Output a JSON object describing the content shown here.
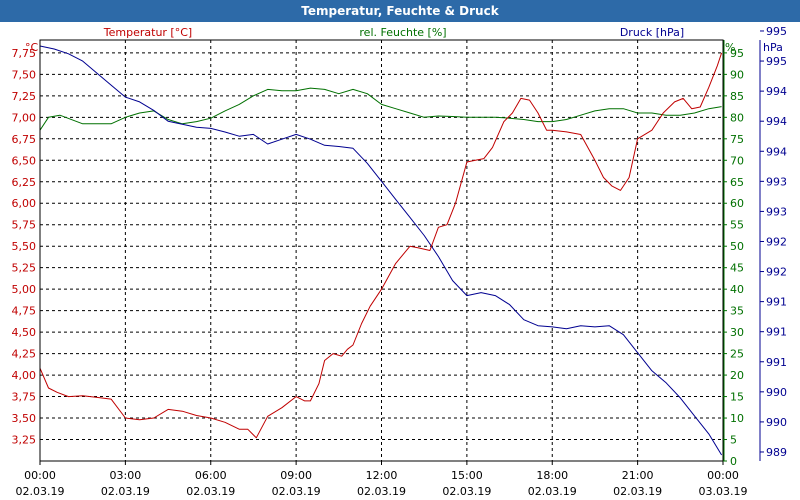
{
  "window": {
    "title": "Temperatur, Feuchte & Druck"
  },
  "chart_data": {
    "type": "line",
    "title": "Temperatur, Feuchte & Druck",
    "colors": {
      "temperature": "#c00000",
      "humidity": "#007000",
      "pressure": "#000090",
      "grid": "#000000",
      "title_bar": "#2d6aa8"
    },
    "x": {
      "unit_label": "time",
      "hours_range": [
        0,
        24
      ],
      "tick_hours": [
        0,
        3,
        6,
        9,
        12,
        15,
        18,
        21,
        24
      ],
      "tick_labels": [
        {
          "time": "00:00",
          "date": "02.03.19"
        },
        {
          "time": "03:00",
          "date": "02.03.19"
        },
        {
          "time": "06:00",
          "date": "02.03.19"
        },
        {
          "time": "09:00",
          "date": "02.03.19"
        },
        {
          "time": "12:00",
          "date": "02.03.19"
        },
        {
          "time": "15:00",
          "date": "02.03.19"
        },
        {
          "time": "18:00",
          "date": "02.03.19"
        },
        {
          "time": "21:00",
          "date": "02.03.19"
        },
        {
          "time": "00:00",
          "date": "03.03.19"
        }
      ]
    },
    "axes": {
      "temperature": {
        "unit": "°C",
        "legend": "Temperatur [°C]",
        "range": [
          3.0,
          7.9
        ],
        "ticks": [
          "3,25",
          "3,50",
          "3,75",
          "4,00",
          "4,25",
          "4,50",
          "4,75",
          "5,00",
          "5,25",
          "5,50",
          "5,75",
          "6,00",
          "6,25",
          "6,50",
          "6,75",
          "7,00",
          "7,25",
          "7,50",
          "7,75"
        ]
      },
      "humidity": {
        "unit": "%",
        "legend": "rel. Feuchte [%]",
        "range": [
          0,
          98
        ],
        "ticks": [
          "0",
          "5",
          "10",
          "15",
          "20",
          "25",
          "30",
          "35",
          "40",
          "45",
          "50",
          "55",
          "60",
          "65",
          "70",
          "75",
          "80",
          "85",
          "90",
          "95"
        ]
      },
      "pressure": {
        "unit": "hPa",
        "legend": "Druck [hPa]",
        "range": [
          988.95,
          995.95
        ],
        "ticks": [
          "989",
          "990",
          "990",
          "991",
          "991",
          "991",
          "992",
          "992",
          "993",
          "993",
          "994",
          "994",
          "994",
          "995",
          "995"
        ]
      }
    },
    "series": [
      {
        "name": "Temperatur [°C]",
        "axis": "temperature",
        "x": [
          0,
          0.3,
          0.6,
          1,
          1.5,
          2,
          2.5,
          3,
          3.5,
          4,
          4.5,
          5,
          5.5,
          6,
          6.5,
          7,
          7.3,
          7.6,
          8,
          8.5,
          9,
          9.3,
          9.5,
          9.8,
          10,
          10.3,
          10.6,
          10.8,
          11,
          11.3,
          11.6,
          12,
          12.5,
          13,
          13.3,
          13.7,
          14,
          14.3,
          14.6,
          15,
          15.3,
          15.6,
          15.9,
          16.3,
          16.6,
          16.9,
          17.2,
          17.5,
          17.8,
          18,
          18.5,
          19,
          19.5,
          19.8,
          20.1,
          20.4,
          20.7,
          21,
          21.5,
          21.9,
          22.3,
          22.6,
          22.9,
          23.2,
          23.5,
          23.8,
          23.95
        ],
        "values": [
          4.08,
          3.85,
          3.8,
          3.75,
          3.76,
          3.74,
          3.72,
          3.5,
          3.48,
          3.5,
          3.6,
          3.58,
          3.53,
          3.5,
          3.45,
          3.37,
          3.37,
          3.27,
          3.52,
          3.62,
          3.75,
          3.7,
          3.7,
          3.9,
          4.17,
          4.25,
          4.22,
          4.3,
          4.35,
          4.6,
          4.8,
          5.0,
          5.3,
          5.5,
          5.48,
          5.45,
          5.72,
          5.75,
          6.0,
          6.48,
          6.5,
          6.52,
          6.65,
          6.95,
          7.05,
          7.22,
          7.2,
          7.05,
          6.85,
          6.85,
          6.83,
          6.8,
          6.5,
          6.3,
          6.2,
          6.15,
          6.3,
          6.75,
          6.85,
          7.05,
          7.18,
          7.22,
          7.1,
          7.12,
          7.35,
          7.6,
          7.75
        ]
      },
      {
        "name": "rel. Feuchte [%]",
        "axis": "humidity",
        "x": [
          0,
          0.3,
          0.7,
          1.5,
          2,
          2.5,
          3,
          3.5,
          4,
          4.5,
          5,
          5.5,
          6,
          6.5,
          7,
          7.5,
          8,
          8.5,
          9,
          9.5,
          10,
          10.5,
          11,
          11.5,
          12,
          12.5,
          13,
          13.5,
          14,
          14.5,
          15,
          15.5,
          16,
          16.5,
          17,
          17.5,
          18,
          18.5,
          19,
          19.5,
          20,
          20.5,
          21,
          21.5,
          22,
          22.5,
          23,
          23.5,
          23.95
        ],
        "values": [
          77,
          80,
          80.5,
          78.5,
          78.5,
          78.5,
          80,
          81,
          81.5,
          79.5,
          78.5,
          79,
          79.8,
          81.5,
          83,
          85,
          86.5,
          86.2,
          86.2,
          86.8,
          86.5,
          85.5,
          86.5,
          85.5,
          83,
          82,
          81,
          80,
          80.3,
          80.2,
          80,
          80,
          80,
          79.8,
          79.5,
          79,
          79,
          79.5,
          80.5,
          81.5,
          82,
          82,
          81,
          81,
          80.5,
          80.5,
          81,
          82,
          82.5
        ]
      },
      {
        "name": "Druck [hPa]",
        "axis": "pressure",
        "x": [
          0,
          0.5,
          1,
          1.5,
          2,
          2.5,
          3,
          3.5,
          4,
          4.5,
          5,
          5.5,
          6,
          6.5,
          7,
          7.5,
          8,
          8.5,
          9,
          9.5,
          10,
          10.5,
          11,
          11.5,
          12,
          12.5,
          13,
          13.5,
          14,
          14.5,
          15,
          15.5,
          16,
          16.5,
          17,
          17.5,
          18,
          18.5,
          19,
          19.5,
          20,
          20.5,
          21,
          21.5,
          22,
          22.5,
          23,
          23.5,
          23.95
        ],
        "values": [
          995.85,
          995.8,
          995.72,
          995.6,
          995.4,
          995.2,
          995.0,
          994.92,
          994.78,
          994.6,
          994.55,
          994.5,
          994.48,
          994.42,
          994.35,
          994.38,
          994.22,
          994.3,
          994.38,
          994.3,
          994.2,
          994.18,
          994.15,
          993.9,
          993.6,
          993.3,
          993.0,
          992.7,
          992.35,
          991.95,
          991.7,
          991.75,
          991.7,
          991.55,
          991.3,
          991.2,
          991.18,
          991.15,
          991.2,
          991.18,
          991.2,
          991.05,
          990.75,
          990.45,
          990.25,
          990.0,
          989.7,
          989.4,
          989.05
        ]
      }
    ]
  }
}
